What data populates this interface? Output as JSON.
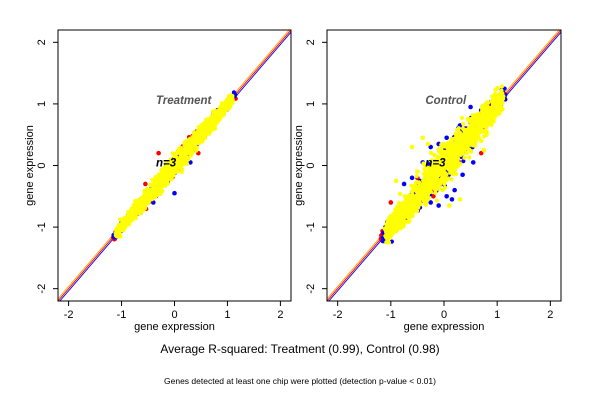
{
  "chart_data": [
    {
      "type": "scatter",
      "title": "Treatment",
      "annotation": "n=3",
      "xlabel": "gene expression",
      "ylabel": "gene expression",
      "xlim": [
        -2.2,
        2.2
      ],
      "ylim": [
        -2.2,
        2.2
      ],
      "xticks": [
        -2,
        -1,
        0,
        1,
        2
      ],
      "yticks": [
        -2,
        -1,
        0,
        1,
        2
      ],
      "grid": false,
      "diagonal_lines": [
        {
          "slope": 1.0,
          "color": "#0000ff"
        },
        {
          "slope": 1.0,
          "color": "#ff0000"
        },
        {
          "slope": 1.0,
          "color": "#ffa500"
        }
      ],
      "series": [
        {
          "color": "#ff0000",
          "extent": [
            -1.15,
            1.15
          ],
          "spread": 0.07,
          "outliers": [
            [
              -0.3,
              0.2
            ],
            [
              -0.55,
              -0.3
            ],
            [
              0.4,
              0.4
            ],
            [
              0.1,
              -0.05
            ],
            [
              0.45,
              0.2
            ],
            [
              -0.35,
              -0.5
            ],
            [
              0.6,
              0.62
            ]
          ]
        },
        {
          "color": "#0000ff",
          "extent": [
            -1.15,
            1.15
          ],
          "spread": 0.06,
          "outliers": [
            [
              0.0,
              -0.45
            ],
            [
              -0.4,
              -0.6
            ],
            [
              0.3,
              0.05
            ],
            [
              -0.15,
              0.0
            ],
            [
              0.2,
              0.3
            ]
          ]
        },
        {
          "color": "#ffff00",
          "extent": [
            -1.1,
            1.1
          ],
          "spread": 0.09,
          "outliers": []
        }
      ]
    },
    {
      "type": "scatter",
      "title": "Control",
      "annotation": "n=3",
      "xlabel": "gene expression",
      "ylabel": "gene expression",
      "xlim": [
        -2.2,
        2.2
      ],
      "ylim": [
        -2.2,
        2.2
      ],
      "xticks": [
        -2,
        -1,
        0,
        1,
        2
      ],
      "yticks": [
        -2,
        -1,
        0,
        1,
        2
      ],
      "grid": false,
      "diagonal_lines": [
        {
          "slope": 1.0,
          "color": "#0000ff"
        },
        {
          "slope": 1.0,
          "color": "#ff0000"
        },
        {
          "slope": 1.0,
          "color": "#ffa500"
        }
      ],
      "series": [
        {
          "color": "#ff0000",
          "extent": [
            -1.2,
            1.15
          ],
          "spread": 0.09,
          "outliers": [
            [
              -1.0,
              -0.6
            ],
            [
              -1.1,
              -1.0
            ],
            [
              -0.9,
              -0.8
            ],
            [
              -0.5,
              -0.2
            ],
            [
              0.7,
              0.2
            ],
            [
              -0.2,
              -0.5
            ],
            [
              0.4,
              0.6
            ]
          ]
        },
        {
          "color": "#0000ff",
          "extent": [
            -1.15,
            1.15
          ],
          "spread": 0.14,
          "outliers": [
            [
              0.7,
              0.9
            ],
            [
              0.8,
              1.0
            ],
            [
              0.9,
              0.85
            ],
            [
              0.5,
              0.95
            ],
            [
              0.3,
              0.65
            ],
            [
              0.45,
              0.55
            ],
            [
              -0.4,
              0.05
            ],
            [
              -0.25,
              0.3
            ],
            [
              -0.1,
              0.35
            ],
            [
              0.05,
              0.45
            ],
            [
              0.35,
              -0.15
            ],
            [
              0.55,
              0.05
            ],
            [
              0.2,
              -0.4
            ],
            [
              0.15,
              -0.55
            ],
            [
              0.05,
              -0.5
            ],
            [
              -0.1,
              -0.65
            ],
            [
              -0.25,
              -0.6
            ],
            [
              -0.35,
              -0.55
            ],
            [
              -0.5,
              -0.5
            ],
            [
              -0.45,
              -0.25
            ],
            [
              -0.6,
              -0.45
            ],
            [
              -0.75,
              -0.3
            ],
            [
              -0.8,
              -0.85
            ],
            [
              -0.15,
              -0.25
            ],
            [
              0.25,
              0.3
            ],
            [
              0.6,
              0.75
            ],
            [
              0.65,
              0.55
            ],
            [
              0.8,
              0.65
            ],
            [
              0.75,
              0.8
            ],
            [
              -0.6,
              -0.2
            ]
          ]
        },
        {
          "color": "#ffff00",
          "extent": [
            -1.1,
            1.1
          ],
          "spread": 0.17,
          "outliers": [
            [
              -0.9,
              -0.25
            ],
            [
              -0.6,
              0.3
            ],
            [
              -0.4,
              0.45
            ],
            [
              0.7,
              0.4
            ],
            [
              0.8,
              0.5
            ],
            [
              0.1,
              -0.65
            ],
            [
              0.3,
              -0.55
            ],
            [
              -0.3,
              0.35
            ],
            [
              0.75,
              0.25
            ],
            [
              -0.5,
              -0.1
            ]
          ]
        }
      ]
    }
  ],
  "captions": {
    "main": "Average R-squared: Treatment (0.99), Control (0.98)",
    "note": "Genes detected at least one chip were plotted (detection p-value < 0.01)"
  }
}
